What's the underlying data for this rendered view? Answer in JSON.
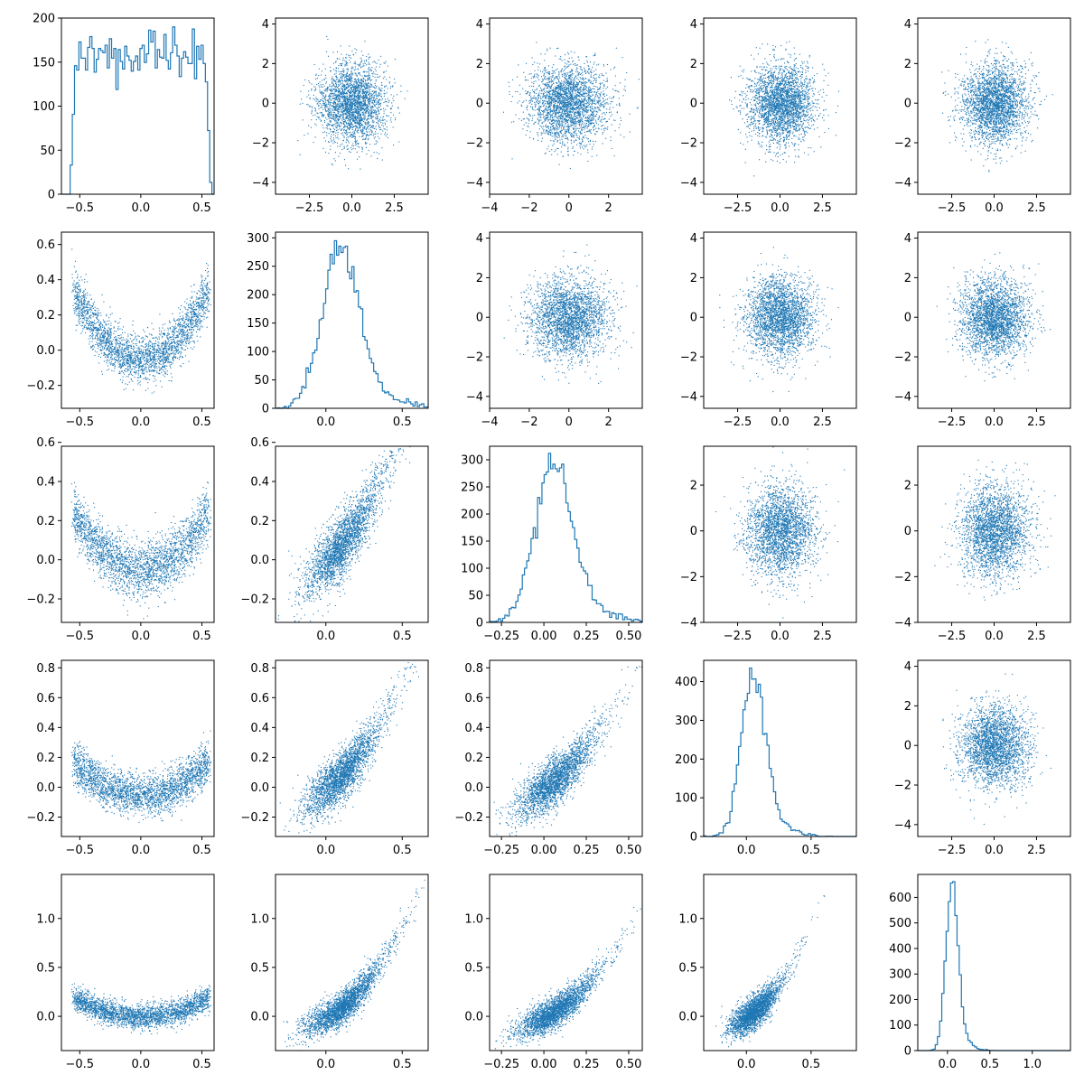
{
  "figure": {
    "accent_color": "#1f77b4",
    "background": "#ffffff"
  },
  "chart_data": {
    "type": "scatter",
    "layout": "5x5 pair plot (diagonal: histograms, off-diagonal: scatter)",
    "grid": false,
    "legend": "none",
    "variables": [
      {
        "index": 0,
        "range": [
          -0.65,
          0.6
        ],
        "ticks": [
          -0.5,
          0.0,
          0.5
        ],
        "tick_labels": [
          "−0.5",
          "0.0",
          "0.5"
        ]
      },
      {
        "index": 1,
        "range": [
          -0.33,
          0.67
        ],
        "ticks": [
          0.0,
          0.5
        ],
        "tick_labels": [
          "0.0",
          "0.5"
        ]
      },
      {
        "index": 2,
        "range": [
          -0.32,
          0.58
        ],
        "ticks": [
          -0.25,
          0.0,
          0.25,
          0.5
        ],
        "tick_labels": [
          "−0.25",
          "0.00",
          "0.25",
          "0.50"
        ]
      },
      {
        "index": 3,
        "range": [
          -0.33,
          0.85
        ],
        "ticks": [
          0.0,
          0.5
        ],
        "tick_labels": [
          "0.0",
          "0.5"
        ]
      },
      {
        "index": 4,
        "range": [
          -0.35,
          1.45
        ],
        "ticks": [
          0.0,
          0.5,
          1.0
        ],
        "tick_labels": [
          "0.0",
          "0.5",
          "1.0"
        ]
      }
    ],
    "normal_axes": {
      "symmetric_range": [
        -4.5,
        4.5
      ],
      "ticks": [
        -2.5,
        0.0,
        2.5
      ],
      "tick_labels": [
        "−2.5",
        "0.0",
        "2.5"
      ],
      "alt_range": [
        -4.0,
        3.7
      ],
      "alt_ticks": [
        -4,
        -2,
        0,
        2
      ],
      "alt_tick_labels": [
        "−4",
        "−2",
        "0",
        "2"
      ],
      "y_range": [
        -4.6,
        4.3
      ],
      "y_ticks": [
        -4,
        -2,
        0,
        2,
        4
      ],
      "y_tick_labels": [
        "−4",
        "−2",
        "0",
        "2",
        "4"
      ],
      "y_alt_range": [
        -4.0,
        3.7
      ],
      "y_alt_ticks": [
        -4,
        -2,
        0,
        2
      ],
      "y_alt_tick_labels": [
        "−4",
        "−2",
        "0",
        "2"
      ]
    },
    "histograms": [
      {
        "variable": 0,
        "ylim": [
          0,
          200
        ],
        "yticks": [
          0,
          50,
          100,
          150,
          200
        ],
        "peak": 190
      },
      {
        "variable": 1,
        "ylim": [
          0,
          310
        ],
        "yticks": [
          0,
          50,
          100,
          150,
          200,
          250,
          300
        ],
        "peak": 295
      },
      {
        "variable": 2,
        "ylim": [
          0,
          325
        ],
        "yticks": [
          0,
          50,
          100,
          150,
          200,
          250,
          300
        ],
        "peak": 312
      },
      {
        "variable": 3,
        "ylim": [
          0,
          455
        ],
        "yticks": [
          0,
          100,
          200,
          300,
          400
        ],
        "peak": 435
      },
      {
        "variable": 4,
        "ylim": [
          0,
          690
        ],
        "yticks": [
          0,
          100,
          200,
          300,
          400,
          500,
          600
        ],
        "peak": 662
      }
    ],
    "dependence": "lower triangle: y_j ≈ 0.8·x_i² + small noise curvature; upper triangle: independent standard normals"
  }
}
